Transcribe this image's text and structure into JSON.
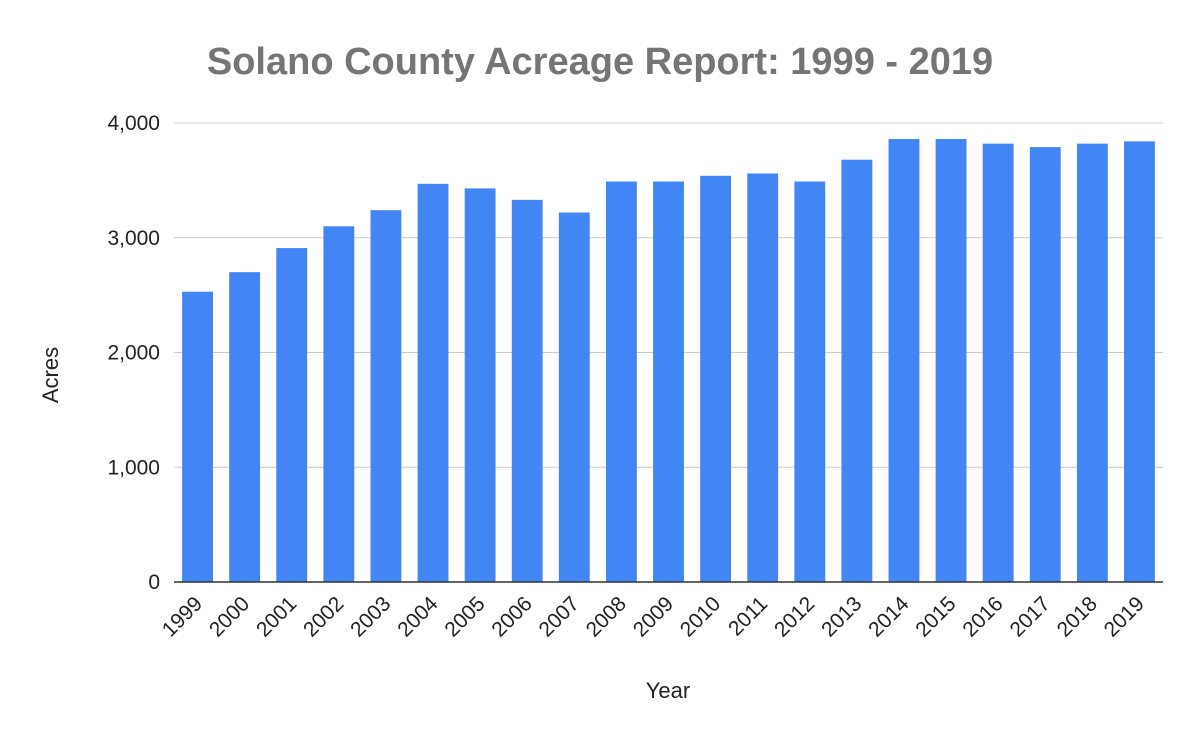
{
  "chart_data": {
    "type": "bar",
    "title": "Solano County Acreage Report: 1999 - 2019",
    "xlabel": "Year",
    "ylabel": "Acres",
    "ylim": [
      0,
      4000
    ],
    "yticks": [
      0,
      1000,
      2000,
      3000,
      4000
    ],
    "ytick_labels": [
      "0",
      "1,000",
      "2,000",
      "3,000",
      "4,000"
    ],
    "grid": true,
    "legend": "none",
    "bar_color": "#4285f4",
    "categories": [
      "1999",
      "2000",
      "2001",
      "2002",
      "2003",
      "2004",
      "2005",
      "2006",
      "2007",
      "2008",
      "2009",
      "2010",
      "2011",
      "2012",
      "2013",
      "2014",
      "2015",
      "2016",
      "2017",
      "2018",
      "2019"
    ],
    "values": [
      2530,
      2700,
      2910,
      3100,
      3240,
      3470,
      3430,
      3330,
      3220,
      3490,
      3490,
      3540,
      3560,
      3490,
      3680,
      3860,
      3860,
      3820,
      3790,
      3820,
      3840
    ]
  }
}
